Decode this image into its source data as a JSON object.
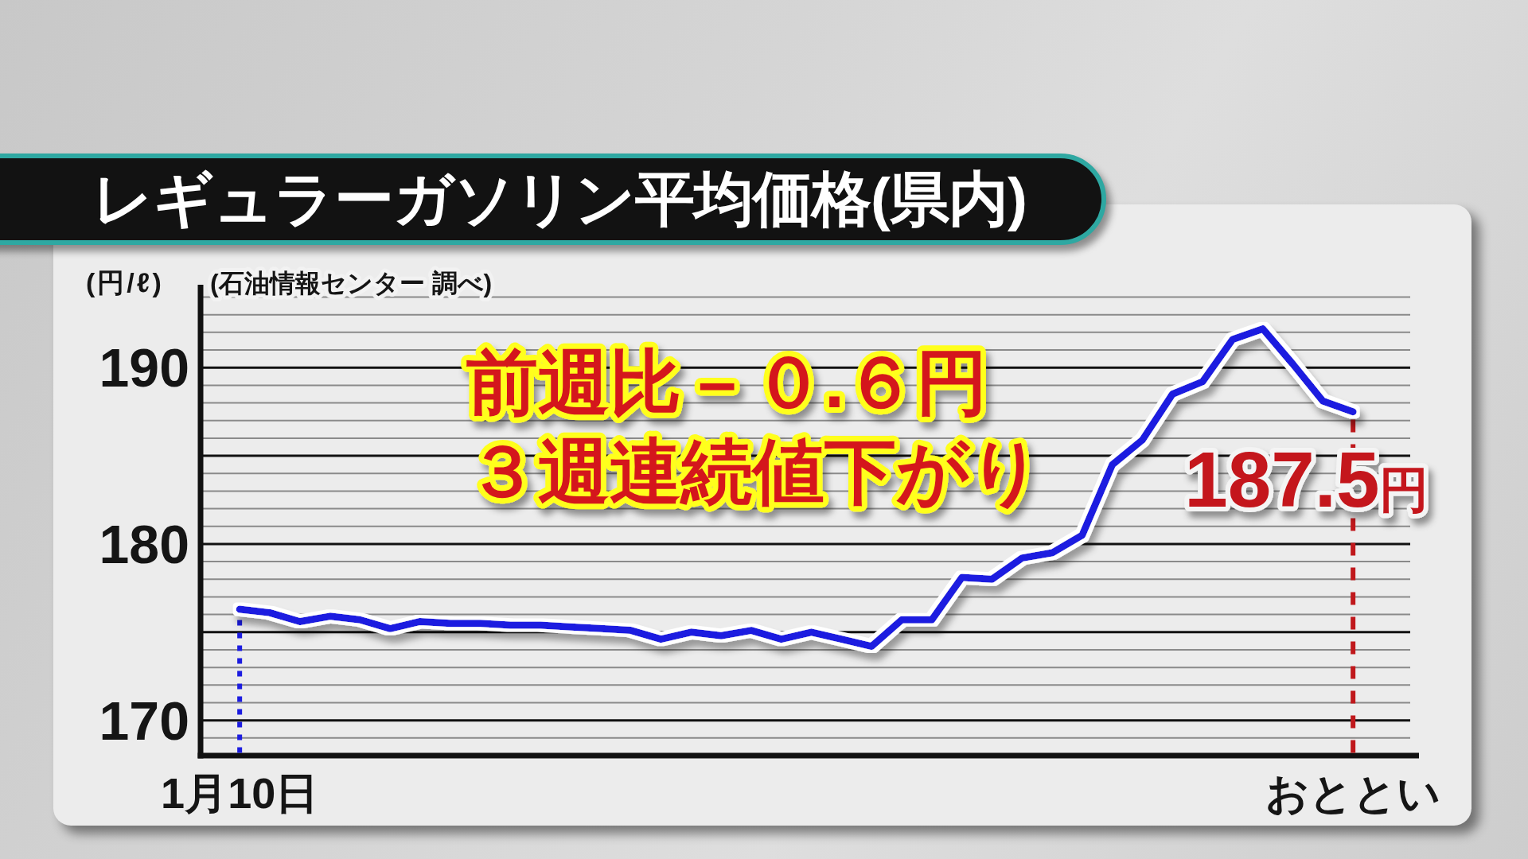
{
  "chart_data": {
    "type": "line",
    "title": "レギュラーガソリン平均価格(県内)",
    "ylabel": "(円/ℓ)",
    "annotations": [
      "(石油情報センター 調べ)",
      "前週比－０.６円",
      "３週連続値下がり",
      {
        "text": "187.5円",
        "x": "おととい",
        "y": 187.5
      }
    ],
    "categories": [
      "1月10日",
      null,
      null,
      null,
      null,
      null,
      null,
      null,
      null,
      null,
      null,
      null,
      null,
      null,
      null,
      null,
      null,
      null,
      null,
      null,
      null,
      null,
      null,
      null,
      null,
      null,
      null,
      null,
      null,
      null,
      null,
      null,
      null,
      null,
      null,
      null,
      null,
      "おととい"
    ],
    "series": [
      {
        "color": "#1c1ce0",
        "values": [
          176.3,
          176.1,
          175.6,
          175.9,
          175.7,
          175.2,
          175.6,
          175.5,
          175.5,
          175.4,
          175.4,
          175.3,
          175.2,
          175.1,
          174.6,
          175.0,
          174.8,
          175.1,
          174.6,
          175.0,
          174.6,
          174.2,
          175.7,
          175.7,
          178.1,
          178.0,
          179.2,
          179.5,
          180.5,
          184.5,
          185.9,
          188.5,
          189.2,
          191.6,
          192.2,
          190.2,
          188.1,
          187.5
        ]
      }
    ],
    "ylim": [
      168,
      194.7
    ],
    "yticks": [
      {
        "value": 169,
        "label": null
      },
      170,
      {
        "value": 171,
        "label": null
      },
      {
        "value": 172,
        "label": null
      },
      {
        "value": 173,
        "label": null
      },
      {
        "value": 174,
        "label": null
      },
      {
        "value": 175,
        "label": null
      },
      {
        "value": 176,
        "label": null
      },
      {
        "value": 177,
        "label": null
      },
      {
        "value": 178,
        "label": null
      },
      {
        "value": 179,
        "label": null
      },
      180,
      {
        "value": 181,
        "label": null
      },
      {
        "value": 182,
        "label": null
      },
      {
        "value": 183,
        "label": null
      },
      {
        "value": 184,
        "label": null
      },
      {
        "value": 185,
        "label": null
      },
      {
        "value": 186,
        "label": null
      },
      {
        "value": 187,
        "label": null
      },
      {
        "value": 188,
        "label": null
      },
      {
        "value": 189,
        "label": null
      },
      190,
      {
        "value": 191,
        "label": null
      },
      {
        "value": 192,
        "label": null
      },
      {
        "value": 193,
        "label": null
      },
      {
        "value": 194,
        "label": null
      }
    ],
    "grid": "y",
    "ref_lines": [
      {
        "axis": "x",
        "value": "1月10日",
        "color": "#1c1ce0",
        "line_style": "dotted"
      },
      {
        "axis": "x",
        "value": "おととい",
        "color": "#c0181c",
        "line_style": "dashed"
      }
    ]
  }
}
